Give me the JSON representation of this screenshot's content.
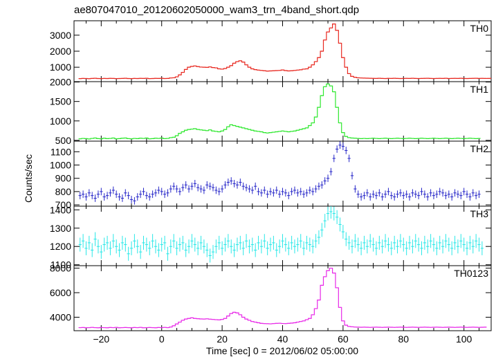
{
  "title": "ae807047010_20120602050000_wam3_trn_4band_short.qdp",
  "chart_data": {
    "type": "line",
    "title": "ae807047010_20120602050000_wam3_trn_4band_short.qdp",
    "xlabel": "Time [sec] 0 = 2012/06/02 05:00:00",
    "ylabel": "Counts/sec",
    "xlim": [
      -29,
      109
    ],
    "x_ticks": [
      -20,
      0,
      20,
      40,
      60,
      80,
      100
    ],
    "bin_width": 1.0,
    "x_start": -27,
    "grid": false,
    "panels": [
      {
        "name": "TH0",
        "color": "#e8271f",
        "ylim": [
          100,
          3900
        ],
        "y_ticks": [
          1000,
          2000,
          3000
        ],
        "error_bars": false,
        "values": [
          290,
          300,
          295,
          285,
          300,
          310,
          295,
          290,
          300,
          295,
          305,
          300,
          290,
          295,
          300,
          310,
          295,
          290,
          300,
          295,
          305,
          300,
          310,
          290,
          295,
          305,
          300,
          310,
          295,
          300,
          330,
          340,
          400,
          520,
          680,
          860,
          1000,
          1050,
          1080,
          1040,
          1010,
          1000,
          990,
          1020,
          980,
          960,
          900,
          880,
          920,
          1000,
          1100,
          1250,
          1350,
          1400,
          1320,
          1150,
          1000,
          900,
          850,
          820,
          800,
          780,
          760,
          770,
          780,
          790,
          800,
          830,
          790,
          770,
          780,
          800,
          820,
          840,
          880,
          900,
          1000,
          1150,
          1350,
          1600,
          2000,
          2700,
          3200,
          3450,
          3700,
          3300,
          2500,
          1600,
          1000,
          600,
          430,
          370,
          340,
          330,
          320,
          315,
          310,
          305,
          300,
          310,
          300,
          295,
          305,
          300,
          310,
          300,
          295,
          300,
          305,
          300,
          310,
          300,
          295,
          300,
          305,
          310,
          300,
          295,
          300,
          305,
          300,
          310,
          295,
          300,
          305,
          300,
          310,
          300,
          295,
          300,
          305,
          310,
          300,
          305,
          300,
          300,
          305,
          300,
          295,
          300
        ]
      },
      {
        "name": "TH1",
        "color": "#2ee82e",
        "ylim": [
          480,
          2010
        ],
        "y_ticks": [
          500,
          1000,
          1500,
          2000
        ],
        "error_bars": false,
        "values": [
          540,
          550,
          545,
          535,
          550,
          560,
          545,
          540,
          555,
          545,
          550,
          560,
          540,
          545,
          555,
          560,
          545,
          540,
          550,
          545,
          555,
          550,
          560,
          540,
          545,
          555,
          550,
          560,
          545,
          550,
          570,
          580,
          620,
          680,
          720,
          760,
          780,
          790,
          800,
          780,
          770,
          760,
          750,
          770,
          740,
          730,
          720,
          740,
          780,
          850,
          900,
          880,
          860,
          840,
          820,
          800,
          780,
          760,
          740,
          730,
          720,
          700,
          690,
          700,
          710,
          720,
          730,
          740,
          730,
          720,
          730,
          740,
          760,
          780,
          800,
          820,
          880,
          950,
          1100,
          1350,
          1650,
          1880,
          1950,
          1900,
          1750,
          1350,
          950,
          700,
          600,
          570,
          560,
          555,
          550,
          545,
          550,
          545,
          550,
          555,
          550,
          545,
          550,
          555,
          550,
          545,
          550,
          555,
          550,
          545,
          550,
          555,
          550,
          545,
          550,
          555,
          550,
          545,
          550,
          555,
          550,
          545,
          550,
          555,
          550,
          545,
          550,
          555,
          550,
          545,
          550,
          555,
          550,
          545,
          550
        ]
      },
      {
        "name": "TH2",
        "color": "#2424c8",
        "ylim": [
          690,
          1180
        ],
        "y_ticks": [
          700,
          800,
          900,
          1000,
          1100
        ],
        "error_bars": true,
        "error": 28,
        "values": [
          770,
          780,
          760,
          790,
          770,
          750,
          780,
          800,
          760,
          770,
          790,
          810,
          780,
          760,
          750,
          790,
          770,
          740,
          730,
          760,
          780,
          800,
          770,
          760,
          780,
          790,
          810,
          800,
          780,
          790,
          820,
          840,
          820,
          800,
          830,
          850,
          820,
          840,
          860,
          830,
          820,
          810,
          850,
          840,
          830,
          810,
          800,
          820,
          850,
          870,
          880,
          860,
          850,
          870,
          840,
          830,
          820,
          810,
          840,
          800,
          790,
          810,
          780,
          800,
          790,
          810,
          780,
          800,
          790,
          770,
          800,
          810,
          790,
          800,
          780,
          790,
          810,
          800,
          820,
          840,
          850,
          880,
          900,
          950,
          1050,
          1120,
          1150,
          1140,
          1110,
          1050,
          920,
          820,
          780,
          760,
          770,
          790,
          760,
          780,
          770,
          790,
          760,
          780,
          800,
          770,
          760,
          780,
          790,
          770,
          780,
          760,
          790,
          780,
          770,
          800,
          780,
          760,
          790,
          770,
          780,
          800,
          790,
          770,
          780,
          760,
          790,
          780,
          770,
          800,
          780,
          760,
          790,
          770,
          780
        ]
      },
      {
        "name": "TH3",
        "color": "#28e8e8",
        "ylim": [
          1095,
          1420
        ],
        "y_ticks": [
          1100,
          1200,
          1300,
          1400
        ],
        "error_bars": true,
        "error": 38,
        "values": [
          1210,
          1230,
          1190,
          1220,
          1180,
          1240,
          1200,
          1170,
          1210,
          1220,
          1190,
          1230,
          1200,
          1180,
          1220,
          1210,
          1160,
          1190,
          1230,
          1200,
          1170,
          1220,
          1210,
          1190,
          1230,
          1200,
          1180,
          1210,
          1220,
          1160,
          1200,
          1230,
          1190,
          1210,
          1220,
          1180,
          1200,
          1230,
          1210,
          1190,
          1220,
          1200,
          1180,
          1150,
          1170,
          1200,
          1220,
          1190,
          1210,
          1230,
          1200,
          1180,
          1210,
          1220,
          1190,
          1230,
          1200,
          1210,
          1180,
          1220,
          1200,
          1230,
          1190,
          1210,
          1220,
          1180,
          1200,
          1230,
          1210,
          1190,
          1220,
          1200,
          1210,
          1230,
          1190,
          1220,
          1210,
          1200,
          1230,
          1250,
          1290,
          1340,
          1380,
          1390,
          1380,
          1360,
          1320,
          1280,
          1240,
          1220,
          1200,
          1230,
          1210,
          1190,
          1220,
          1200,
          1230,
          1210,
          1190,
          1220,
          1200,
          1230,
          1210,
          1190,
          1220,
          1200,
          1230,
          1210,
          1190,
          1220,
          1200,
          1230,
          1210,
          1190,
          1220,
          1200,
          1230,
          1210,
          1190,
          1220,
          1200,
          1230,
          1210,
          1190,
          1220,
          1200,
          1230,
          1210,
          1190,
          1220,
          1200,
          1230,
          1210,
          1190
        ]
      },
      {
        "name": "TH0123",
        "color": "#e828e8",
        "ylim": [
          2900,
          8200
        ],
        "y_ticks": [
          4000,
          6000,
          8000
        ],
        "error_bars": false,
        "values": [
          3150,
          3160,
          3140,
          3150,
          3170,
          3150,
          3140,
          3160,
          3150,
          3140,
          3160,
          3150,
          3170,
          3140,
          3150,
          3160,
          3150,
          3140,
          3160,
          3150,
          3170,
          3140,
          3150,
          3160,
          3150,
          3140,
          3160,
          3150,
          3170,
          3150,
          3200,
          3300,
          3450,
          3600,
          3750,
          3850,
          3900,
          3950,
          3900,
          3880,
          3860,
          3850,
          3870,
          3840,
          3820,
          3800,
          3780,
          3820,
          3900,
          4100,
          4300,
          4400,
          4350,
          4200,
          4000,
          3850,
          3750,
          3650,
          3600,
          3550,
          3500,
          3480,
          3470,
          3460,
          3480,
          3500,
          3510,
          3490,
          3480,
          3500,
          3520,
          3550,
          3600,
          3650,
          3700,
          3800,
          3900,
          4200,
          4700,
          5400,
          6600,
          7300,
          7800,
          8000,
          7600,
          6400,
          4800,
          3700,
          3350,
          3250,
          3220,
          3200,
          3190,
          3180,
          3190,
          3180,
          3170,
          3180,
          3190,
          3180,
          3170,
          3180,
          3190,
          3180,
          3170,
          3180,
          3190,
          3180,
          3170,
          3180,
          3190,
          3180,
          3170,
          3180,
          3190,
          3180,
          3170,
          3180,
          3190,
          3180,
          3170,
          3180,
          3190,
          3180,
          3170,
          3180,
          3190,
          3180,
          3170,
          3180,
          3190,
          3180,
          3170,
          3180,
          3190
        ]
      }
    ]
  }
}
